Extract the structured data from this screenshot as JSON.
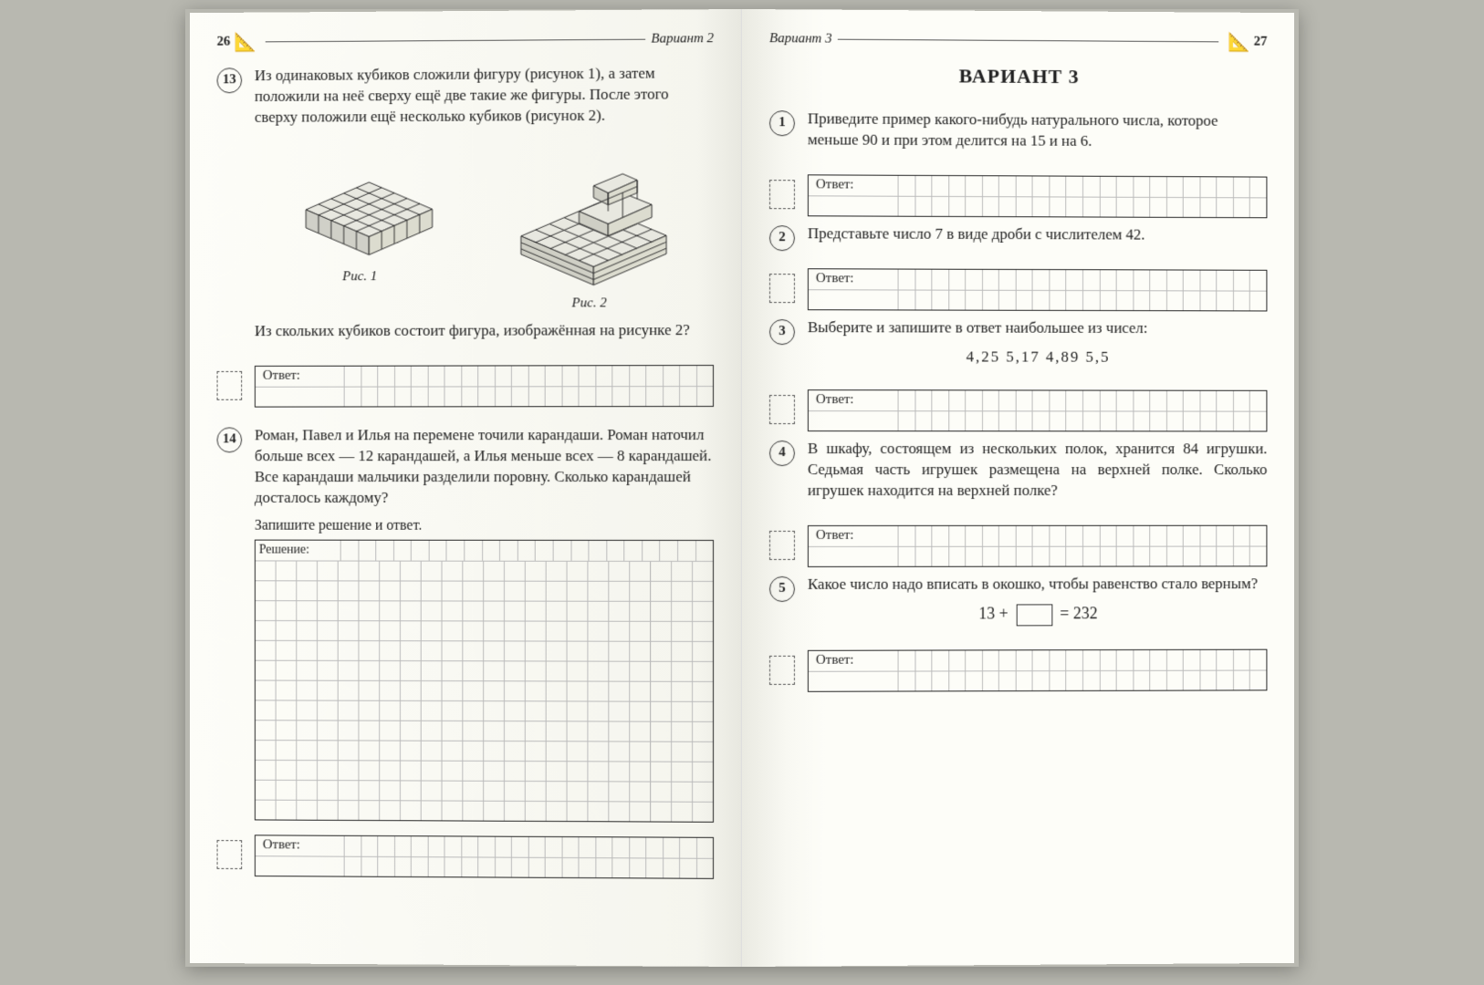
{
  "left_page": {
    "page_number": "26",
    "header_label": "Вариант 2",
    "task13": {
      "num": "13",
      "text": "Из одинаковых кубиков сложили фигуру (рисунок 1), а затем положили на неё сверху ещё две такие же фигуры. После этого сверху положили ещё несколько кубиков (рисунок 2).",
      "fig1_caption": "Рис. 1",
      "fig2_caption": "Рис. 2",
      "question": "Из скольких кубиков состоит фигура, изображённая на рисунке 2?",
      "answer_label": "Ответ:"
    },
    "task14": {
      "num": "14",
      "text": "Роман, Павел и Илья на перемене точили карандаши. Роман наточил больше всех — 12 карандашей, а Илья меньше всех — 8 карандашей. Все карандаши мальчики разделили поровну. Сколько карандашей досталось каждому?",
      "instruction": "Запишите решение и ответ.",
      "solution_label": "Решение:",
      "answer_label": "Ответ:"
    }
  },
  "right_page": {
    "page_number": "27",
    "header_label": "Вариант 3",
    "title": "ВАРИАНТ 3",
    "task1": {
      "num": "1",
      "text": "Приведите пример какого-нибудь натурального числа, которое меньше 90 и при этом делится на 15 и на 6.",
      "answer_label": "Ответ:"
    },
    "task2": {
      "num": "2",
      "text": "Представьте число 7 в виде дроби с числителем 42.",
      "answer_label": "Ответ:"
    },
    "task3": {
      "num": "3",
      "text": "Выберите и запишите в ответ наибольшее из чисел:",
      "numbers": "4,25   5,17   4,89   5,5",
      "answer_label": "Ответ:"
    },
    "task4": {
      "num": "4",
      "text": "В шкафу, состоящем из нескольких полок, хранится 84 игрушки. Седьмая часть игрушек размещена на верхней полке. Сколько игрушек находится на верхней полке?",
      "answer_label": "Ответ:"
    },
    "task5": {
      "num": "5",
      "text": "Какое число надо вписать в окошко, чтобы равенство стало верным?",
      "eq_left": "13 +",
      "eq_right": "= 232",
      "answer_label": "Ответ:"
    }
  },
  "style": {
    "grid_cols": 22,
    "answer_rows": 2,
    "cell_border": "#bbbbbb",
    "frame_border": "#222222",
    "bg": "#fdfdf8"
  }
}
